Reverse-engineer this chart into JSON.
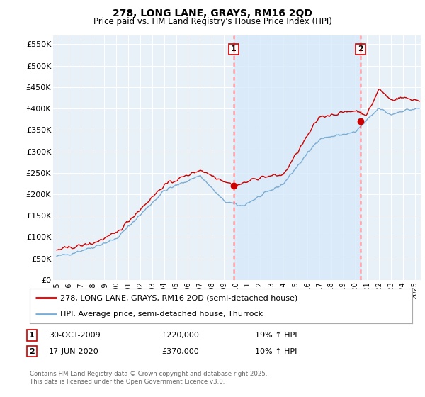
{
  "title": "278, LONG LANE, GRAYS, RM16 2QD",
  "subtitle": "Price paid vs. HM Land Registry's House Price Index (HPI)",
  "ylabel_ticks": [
    "£0",
    "£50K",
    "£100K",
    "£150K",
    "£200K",
    "£250K",
    "£300K",
    "£350K",
    "£400K",
    "£450K",
    "£500K",
    "£550K"
  ],
  "ytick_values": [
    0,
    50000,
    100000,
    150000,
    200000,
    250000,
    300000,
    350000,
    400000,
    450000,
    500000,
    550000
  ],
  "ylim": [
    0,
    570000
  ],
  "xlim_start": 1994.7,
  "xlim_end": 2025.5,
  "marker1_x": 2009.83,
  "marker1_y": 220000,
  "marker2_x": 2020.46,
  "marker2_y": 370000,
  "legend_line1": "278, LONG LANE, GRAYS, RM16 2QD (semi-detached house)",
  "legend_line2": "HPI: Average price, semi-detached house, Thurrock",
  "footer": "Contains HM Land Registry data © Crown copyright and database right 2025.\nThis data is licensed under the Open Government Licence v3.0.",
  "line_color_red": "#cc0000",
  "line_color_blue": "#7aadd4",
  "fill_color": "#d8eaf8",
  "vline_color": "#cc0000",
  "background_color": "#ffffff",
  "plot_bg_color": "#e8f0f8",
  "grid_color": "#ffffff"
}
